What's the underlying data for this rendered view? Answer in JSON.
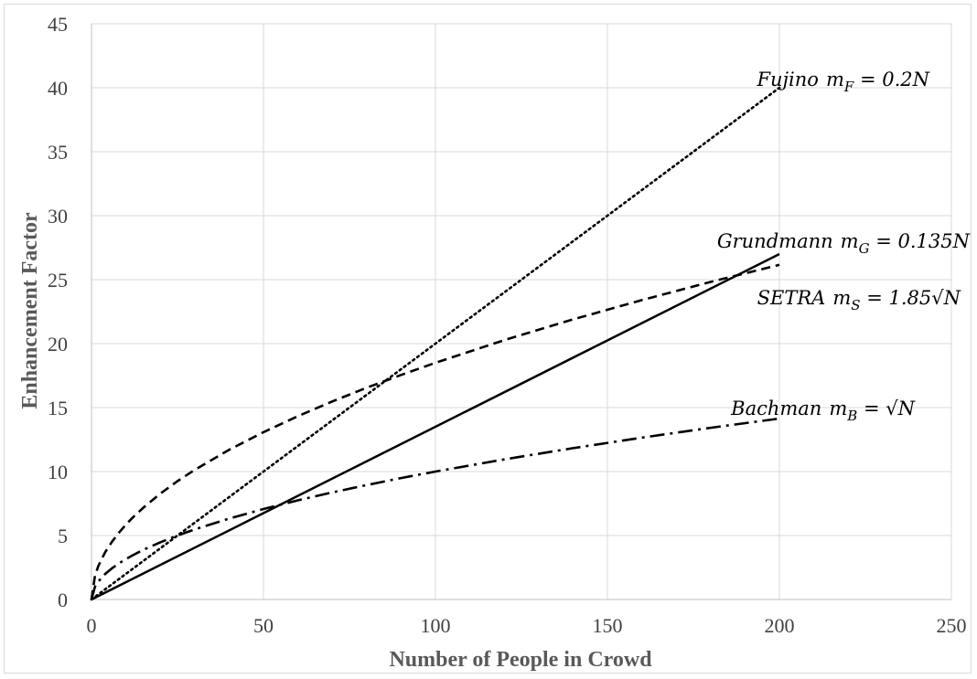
{
  "chart_data": {
    "type": "line",
    "xlabel": "Number of People in Crowd",
    "ylabel": "Enhancement Factor",
    "xlim": [
      0,
      250
    ],
    "ylim": [
      0,
      45
    ],
    "xticks": [
      "0",
      "50",
      "100",
      "150",
      "200",
      "250"
    ],
    "yticks": [
      "0",
      "5",
      "10",
      "15",
      "20",
      "25",
      "30",
      "35",
      "40",
      "45"
    ],
    "grid": true,
    "legend": "none",
    "series": [
      {
        "key": "fujino",
        "style": "dotted",
        "x": [
          0,
          50,
          100,
          150,
          200
        ],
        "y": [
          0,
          10,
          20,
          30,
          40
        ],
        "label": {
          "name": "Fujino",
          "formula": "m_F = 0.2N"
        }
      },
      {
        "key": "grundmann",
        "style": "solid",
        "x": [
          0,
          50,
          100,
          150,
          200
        ],
        "y": [
          0,
          6.75,
          13.5,
          20.25,
          27
        ],
        "label": {
          "name": "Grundmann",
          "formula": "m_G = 0.135N"
        }
      },
      {
        "key": "setra",
        "style": "dashed",
        "x": [
          0,
          1,
          2,
          4,
          6,
          8,
          10,
          12,
          15,
          20,
          25,
          30,
          40,
          50,
          60,
          70,
          80,
          90,
          100,
          120,
          140,
          160,
          180,
          200
        ],
        "y": [
          0,
          1.85,
          2.62,
          3.7,
          4.53,
          5.23,
          5.85,
          6.41,
          7.16,
          8.27,
          9.25,
          10.13,
          11.7,
          13.08,
          14.33,
          15.48,
          16.55,
          17.55,
          18.5,
          20.27,
          21.89,
          23.4,
          24.82,
          26.16
        ],
        "label": {
          "name": "SETRA",
          "formula": "m_S = 1.85√N"
        }
      },
      {
        "key": "bachman",
        "style": "dashdot",
        "x": [
          0,
          1,
          2,
          4,
          6,
          8,
          10,
          12,
          15,
          20,
          25,
          30,
          40,
          50,
          60,
          70,
          80,
          90,
          100,
          120,
          140,
          160,
          180,
          200
        ],
        "y": [
          0,
          1,
          1.41,
          2,
          2.45,
          2.83,
          3.16,
          3.46,
          3.87,
          4.47,
          5,
          5.48,
          6.32,
          7.07,
          7.75,
          8.37,
          8.94,
          9.49,
          10,
          10.95,
          11.83,
          12.65,
          13.42,
          14.14
        ],
        "label": {
          "name": "Bachman",
          "formula": "m_B = √N"
        }
      }
    ]
  }
}
